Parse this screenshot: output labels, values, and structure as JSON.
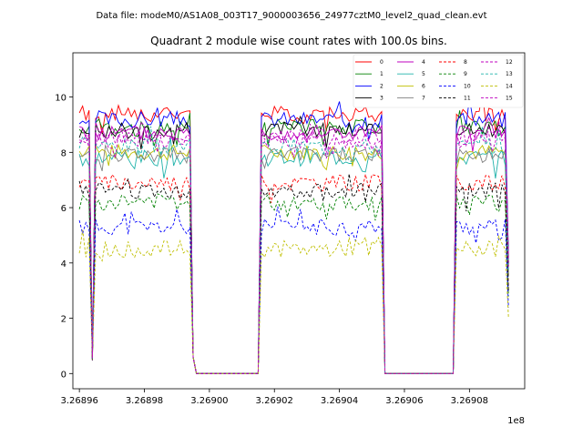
{
  "chart_data": {
    "type": "line",
    "suptitle": "Data file: modeM0/AS1A08_003T17_9000003656_24977cztM0_level2_quad_clean.evt",
    "title": "Quadrant 2 module wise count rates with 100.0s bins.",
    "xlabel": "",
    "ylabel": "",
    "x_offset_label": "1e8",
    "xlim": [
      3.268958,
      3.269097
    ],
    "ylim": [
      -0.55,
      11.6
    ],
    "x_ticks": [
      3.26896,
      3.26898,
      3.269,
      3.26902,
      3.26904,
      3.26906,
      3.26908
    ],
    "x_tick_labels": [
      "3.26896",
      "3.26898",
      "3.26900",
      "3.26902",
      "3.26904",
      "3.26906",
      "3.26908"
    ],
    "y_ticks": [
      0,
      2,
      4,
      6,
      8,
      10
    ],
    "y_tick_labels": [
      "0",
      "2",
      "4",
      "6",
      "8",
      "10"
    ],
    "grid": false,
    "legend_position": "top-right",
    "legend_columns": 4,
    "segments": [
      {
        "x_start": 3.26896,
        "x_end": 3.269,
        "on_start": 3.26896,
        "on_end": 3.268995,
        "dip_at": 3.268964
      },
      {
        "x_start": 3.269,
        "x_end": 3.269053,
        "on_start": 3.269016,
        "on_end": 3.269053,
        "dip_at": null
      },
      {
        "x_start": 3.269053,
        "x_end": 3.269092,
        "on_start": 3.269076,
        "on_end": 3.269092,
        "dip_at": null
      }
    ],
    "off_level": 0,
    "series": [
      {
        "name": "0",
        "color": "#ff0000",
        "style": "solid",
        "mean": 9.4,
        "noise": 0.3,
        "seed": 1
      },
      {
        "name": "1",
        "color": "#008000",
        "style": "solid",
        "mean": 8.9,
        "noise": 0.3,
        "seed": 2
      },
      {
        "name": "2",
        "color": "#0000ff",
        "style": "solid",
        "mean": 9.2,
        "noise": 0.3,
        "seed": 3
      },
      {
        "name": "3",
        "color": "#000000",
        "style": "solid",
        "mean": 8.8,
        "noise": 0.3,
        "seed": 4
      },
      {
        "name": "4",
        "color": "#bf00bf",
        "style": "solid",
        "mean": 8.7,
        "noise": 0.3,
        "seed": 5
      },
      {
        "name": "5",
        "color": "#20b2aa",
        "style": "solid",
        "mean": 7.8,
        "noise": 0.3,
        "seed": 6
      },
      {
        "name": "6",
        "color": "#bfbf00",
        "style": "solid",
        "mean": 8.0,
        "noise": 0.3,
        "seed": 7
      },
      {
        "name": "7",
        "color": "#808080",
        "style": "solid",
        "mean": 7.9,
        "noise": 0.3,
        "seed": 8
      },
      {
        "name": "8",
        "color": "#ff0000",
        "style": "dashed",
        "mean": 6.9,
        "noise": 0.3,
        "seed": 9
      },
      {
        "name": "9",
        "color": "#008000",
        "style": "dashed",
        "mean": 6.2,
        "noise": 0.3,
        "seed": 10
      },
      {
        "name": "10",
        "color": "#0000ff",
        "style": "dashed",
        "mean": 5.3,
        "noise": 0.3,
        "seed": 11
      },
      {
        "name": "11",
        "color": "#000000",
        "style": "dashed",
        "mean": 6.6,
        "noise": 0.3,
        "seed": 12
      },
      {
        "name": "12",
        "color": "#bf00bf",
        "style": "dashed",
        "mean": 8.4,
        "noise": 0.3,
        "seed": 13
      },
      {
        "name": "13",
        "color": "#20b2aa",
        "style": "dashed",
        "mean": 8.2,
        "noise": 0.3,
        "seed": 14
      },
      {
        "name": "14",
        "color": "#bfbf00",
        "style": "dashed",
        "mean": 4.5,
        "noise": 0.3,
        "seed": 15
      },
      {
        "name": "15",
        "color": "#bf00bf",
        "style": "dashed",
        "mean": 8.6,
        "noise": 0.3,
        "seed": 16
      }
    ]
  }
}
